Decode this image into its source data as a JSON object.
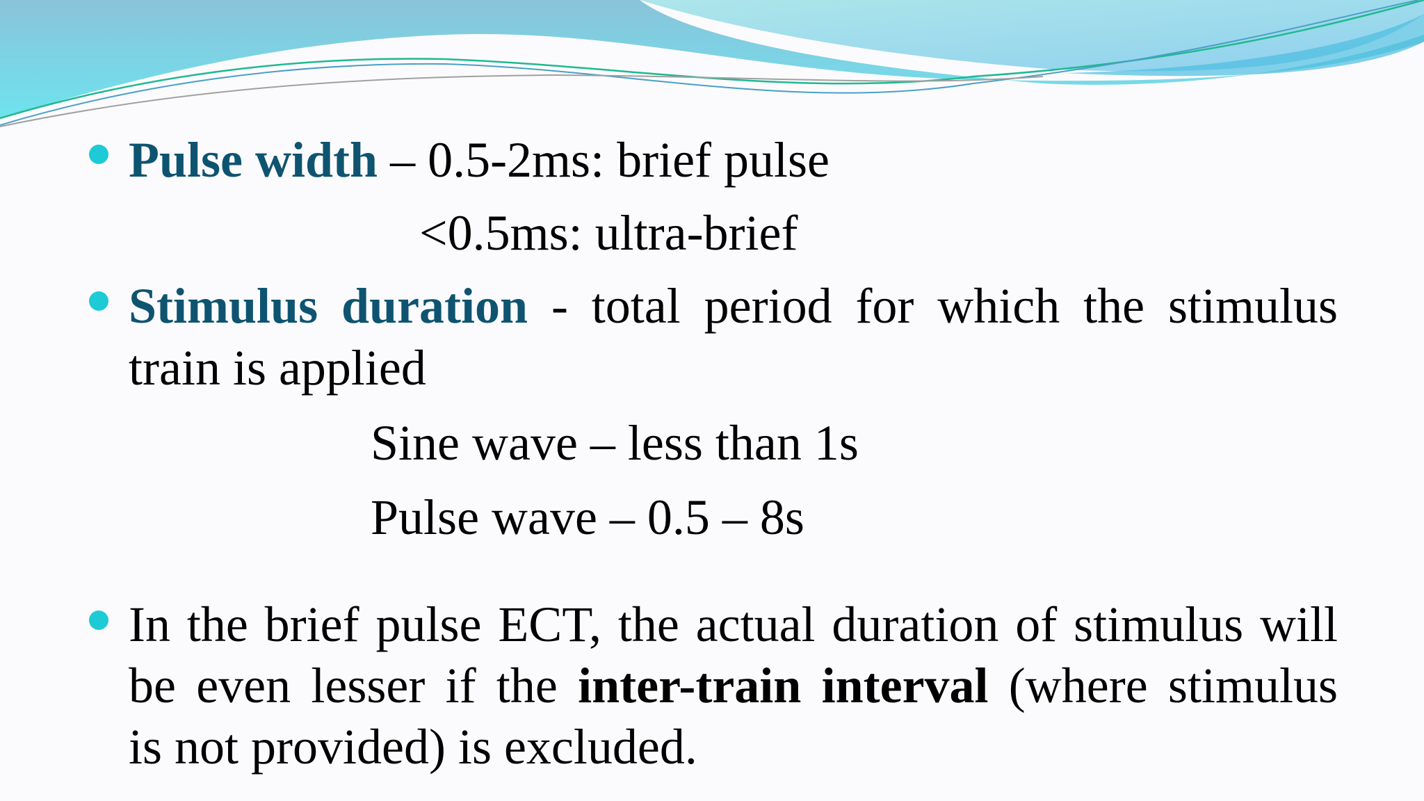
{
  "colors": {
    "accent": "#0e5470",
    "bullet": "#1ecad6",
    "wave_light": "#9fdbe6",
    "wave_dark": "#5cc8e0"
  },
  "bullets": [
    {
      "term": "Pulse width",
      "text": " – 0.5-2ms: brief pulse",
      "sub": "<0.5ms: ultra-brief"
    },
    {
      "term": "Stimulus duration",
      "text_line1": " - total period for which the stimulus",
      "text_line2": "train is applied",
      "sub1": "Sine wave – less than 1s",
      "sub2": "Pulse wave – 0.5 – 8s"
    },
    {
      "line1": "In the brief pulse ECT, the actual duration of stimulus will",
      "line2_pre": "be even lesser if the ",
      "term": "inter-train interval",
      "line2_post": " (where stimulus",
      "line3": "is not provided) is excluded."
    }
  ]
}
